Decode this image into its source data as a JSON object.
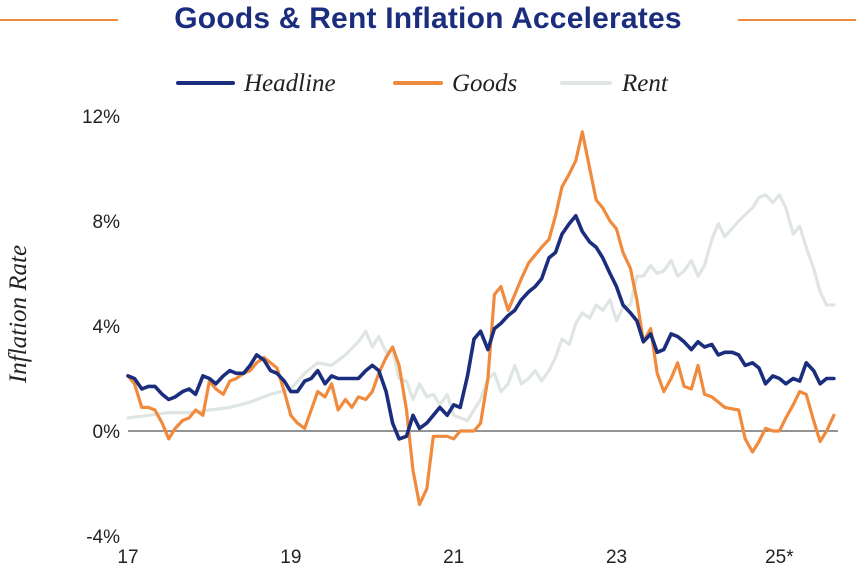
{
  "colors": {
    "title": "#1b2e7e",
    "accent_rule": "#f08a3c",
    "zero_line": "#555555"
  },
  "chart_data": {
    "type": "line",
    "title": "Goods & Rent Inflation Accelerates",
    "ylabel": "Inflation Rate",
    "xlabel": "",
    "ylim": [
      -4,
      12
    ],
    "y_ticks": [
      {
        "value": 12,
        "label": "12%"
      },
      {
        "value": 8,
        "label": "8%"
      },
      {
        "value": 4,
        "label": "4%"
      },
      {
        "value": 0,
        "label": "0%"
      },
      {
        "value": -4,
        "label": "-4%"
      }
    ],
    "x_ticks": [
      {
        "value": 2017.0,
        "label": "17"
      },
      {
        "value": 2019.0,
        "label": "19"
      },
      {
        "value": 2021.0,
        "label": "21"
      },
      {
        "value": 2023.0,
        "label": "23"
      },
      {
        "value": 2025.0,
        "label": "25*"
      }
    ],
    "xlim": [
      2017.0,
      2025.72
    ],
    "legend": "top-center",
    "series": [
      {
        "name": "Rent",
        "color": "#dfe6e2",
        "points": [
          [
            2017.0,
            0.5
          ],
          [
            2017.25,
            0.6
          ],
          [
            2017.5,
            0.7
          ],
          [
            2017.75,
            0.7
          ],
          [
            2018.0,
            0.8
          ],
          [
            2018.25,
            0.9
          ],
          [
            2018.5,
            1.1
          ],
          [
            2018.75,
            1.4
          ],
          [
            2019.0,
            1.6
          ],
          [
            2019.17,
            2.2
          ],
          [
            2019.33,
            2.6
          ],
          [
            2019.5,
            2.5
          ],
          [
            2019.67,
            2.9
          ],
          [
            2019.83,
            3.4
          ],
          [
            2019.92,
            3.8
          ],
          [
            2020.0,
            3.2
          ],
          [
            2020.08,
            3.6
          ],
          [
            2020.17,
            3.0
          ],
          [
            2020.25,
            3.1
          ],
          [
            2020.33,
            2.0
          ],
          [
            2020.42,
            1.9
          ],
          [
            2020.5,
            1.2
          ],
          [
            2020.58,
            1.8
          ],
          [
            2020.67,
            1.3
          ],
          [
            2020.75,
            1.4
          ],
          [
            2020.83,
            1.0
          ],
          [
            2020.92,
            1.4
          ],
          [
            2021.0,
            0.6
          ],
          [
            2021.08,
            0.5
          ],
          [
            2021.17,
            0.4
          ],
          [
            2021.25,
            0.8
          ],
          [
            2021.33,
            1.2
          ],
          [
            2021.42,
            2.0
          ],
          [
            2021.5,
            2.2
          ],
          [
            2021.58,
            1.5
          ],
          [
            2021.67,
            1.8
          ],
          [
            2021.75,
            2.5
          ],
          [
            2021.83,
            1.8
          ],
          [
            2021.92,
            2.0
          ],
          [
            2022.0,
            2.3
          ],
          [
            2022.08,
            1.9
          ],
          [
            2022.17,
            2.3
          ],
          [
            2022.25,
            2.8
          ],
          [
            2022.33,
            3.5
          ],
          [
            2022.42,
            3.3
          ],
          [
            2022.5,
            4.1
          ],
          [
            2022.58,
            4.5
          ],
          [
            2022.67,
            4.3
          ],
          [
            2022.75,
            4.8
          ],
          [
            2022.83,
            4.6
          ],
          [
            2022.92,
            5.0
          ],
          [
            2023.0,
            4.2
          ],
          [
            2023.08,
            4.7
          ],
          [
            2023.17,
            4.8
          ],
          [
            2023.25,
            5.9
          ],
          [
            2023.33,
            5.9
          ],
          [
            2023.42,
            6.3
          ],
          [
            2023.5,
            6.0
          ],
          [
            2023.58,
            6.1
          ],
          [
            2023.67,
            6.5
          ],
          [
            2023.75,
            5.9
          ],
          [
            2023.83,
            6.1
          ],
          [
            2023.92,
            6.5
          ],
          [
            2024.0,
            5.9
          ],
          [
            2024.08,
            6.3
          ],
          [
            2024.17,
            7.3
          ],
          [
            2024.25,
            7.9
          ],
          [
            2024.33,
            7.4
          ],
          [
            2024.5,
            8.0
          ],
          [
            2024.67,
            8.5
          ],
          [
            2024.75,
            8.9
          ],
          [
            2024.83,
            9.0
          ],
          [
            2024.92,
            8.7
          ],
          [
            2025.0,
            9.0
          ],
          [
            2025.08,
            8.5
          ],
          [
            2025.17,
            7.5
          ],
          [
            2025.25,
            7.8
          ],
          [
            2025.33,
            7.0
          ],
          [
            2025.42,
            6.2
          ],
          [
            2025.5,
            5.3
          ],
          [
            2025.58,
            4.8
          ],
          [
            2025.67,
            4.8
          ]
        ]
      },
      {
        "name": "Goods",
        "color": "#f08a3c",
        "points": [
          [
            2017.0,
            2.1
          ],
          [
            2017.08,
            1.8
          ],
          [
            2017.17,
            0.9
          ],
          [
            2017.25,
            0.9
          ],
          [
            2017.33,
            0.8
          ],
          [
            2017.42,
            0.3
          ],
          [
            2017.5,
            -0.3
          ],
          [
            2017.58,
            0.1
          ],
          [
            2017.67,
            0.4
          ],
          [
            2017.75,
            0.5
          ],
          [
            2017.83,
            0.8
          ],
          [
            2017.92,
            0.6
          ],
          [
            2018.0,
            1.9
          ],
          [
            2018.08,
            1.6
          ],
          [
            2018.17,
            1.4
          ],
          [
            2018.25,
            1.9
          ],
          [
            2018.33,
            2.0
          ],
          [
            2018.42,
            2.2
          ],
          [
            2018.5,
            2.3
          ],
          [
            2018.58,
            2.6
          ],
          [
            2018.67,
            2.8
          ],
          [
            2018.75,
            2.6
          ],
          [
            2018.83,
            2.4
          ],
          [
            2018.92,
            1.5
          ],
          [
            2019.0,
            0.6
          ],
          [
            2019.08,
            0.3
          ],
          [
            2019.17,
            0.1
          ],
          [
            2019.25,
            0.8
          ],
          [
            2019.33,
            1.5
          ],
          [
            2019.42,
            1.3
          ],
          [
            2019.5,
            1.8
          ],
          [
            2019.58,
            0.8
          ],
          [
            2019.67,
            1.2
          ],
          [
            2019.75,
            0.9
          ],
          [
            2019.83,
            1.3
          ],
          [
            2019.92,
            1.2
          ],
          [
            2020.0,
            1.5
          ],
          [
            2020.08,
            2.2
          ],
          [
            2020.17,
            2.8
          ],
          [
            2020.25,
            3.2
          ],
          [
            2020.33,
            2.5
          ],
          [
            2020.42,
            0.8
          ],
          [
            2020.5,
            -1.5
          ],
          [
            2020.58,
            -2.8
          ],
          [
            2020.67,
            -2.2
          ],
          [
            2020.75,
            -0.2
          ],
          [
            2020.83,
            -0.2
          ],
          [
            2020.92,
            -0.2
          ],
          [
            2021.0,
            -0.3
          ],
          [
            2021.08,
            0.0
          ],
          [
            2021.17,
            0.0
          ],
          [
            2021.25,
            0.0
          ],
          [
            2021.33,
            0.3
          ],
          [
            2021.42,
            2.0
          ],
          [
            2021.5,
            5.2
          ],
          [
            2021.58,
            5.5
          ],
          [
            2021.67,
            4.6
          ],
          [
            2021.75,
            5.2
          ],
          [
            2021.83,
            5.8
          ],
          [
            2021.92,
            6.4
          ],
          [
            2022.0,
            6.7
          ],
          [
            2022.08,
            7.0
          ],
          [
            2022.17,
            7.3
          ],
          [
            2022.25,
            8.2
          ],
          [
            2022.33,
            9.3
          ],
          [
            2022.42,
            9.8
          ],
          [
            2022.5,
            10.3
          ],
          [
            2022.58,
            11.4
          ],
          [
            2022.67,
            10.0
          ],
          [
            2022.75,
            8.8
          ],
          [
            2022.83,
            8.5
          ],
          [
            2022.92,
            8.0
          ],
          [
            2023.0,
            7.7
          ],
          [
            2023.08,
            6.8
          ],
          [
            2023.17,
            6.2
          ],
          [
            2023.25,
            5.0
          ],
          [
            2023.33,
            3.4
          ],
          [
            2023.42,
            3.9
          ],
          [
            2023.5,
            2.2
          ],
          [
            2023.58,
            1.5
          ],
          [
            2023.67,
            2.0
          ],
          [
            2023.75,
            2.6
          ],
          [
            2023.83,
            1.7
          ],
          [
            2023.92,
            1.6
          ],
          [
            2024.0,
            2.5
          ],
          [
            2024.08,
            1.4
          ],
          [
            2024.17,
            1.3
          ],
          [
            2024.25,
            1.1
          ],
          [
            2024.33,
            0.9
          ],
          [
            2024.5,
            0.8
          ],
          [
            2024.58,
            -0.3
          ],
          [
            2024.67,
            -0.8
          ],
          [
            2024.75,
            -0.4
          ],
          [
            2024.83,
            0.1
          ],
          [
            2024.92,
            0.0
          ],
          [
            2025.0,
            0.0
          ],
          [
            2025.08,
            0.5
          ],
          [
            2025.17,
            1.0
          ],
          [
            2025.25,
            1.5
          ],
          [
            2025.33,
            1.4
          ],
          [
            2025.42,
            0.4
          ],
          [
            2025.5,
            -0.4
          ],
          [
            2025.58,
            0.0
          ],
          [
            2025.67,
            0.6
          ]
        ]
      },
      {
        "name": "Headline",
        "color": "#1b2e7e",
        "points": [
          [
            2017.0,
            2.1
          ],
          [
            2017.08,
            2.0
          ],
          [
            2017.17,
            1.6
          ],
          [
            2017.25,
            1.7
          ],
          [
            2017.33,
            1.7
          ],
          [
            2017.42,
            1.4
          ],
          [
            2017.5,
            1.2
          ],
          [
            2017.58,
            1.3
          ],
          [
            2017.67,
            1.5
          ],
          [
            2017.75,
            1.6
          ],
          [
            2017.83,
            1.4
          ],
          [
            2017.92,
            2.1
          ],
          [
            2018.0,
            2.0
          ],
          [
            2018.08,
            1.8
          ],
          [
            2018.17,
            2.1
          ],
          [
            2018.25,
            2.3
          ],
          [
            2018.33,
            2.2
          ],
          [
            2018.42,
            2.2
          ],
          [
            2018.5,
            2.5
          ],
          [
            2018.58,
            2.9
          ],
          [
            2018.67,
            2.7
          ],
          [
            2018.75,
            2.3
          ],
          [
            2018.83,
            2.2
          ],
          [
            2018.92,
            1.9
          ],
          [
            2019.0,
            1.5
          ],
          [
            2019.08,
            1.5
          ],
          [
            2019.17,
            1.9
          ],
          [
            2019.25,
            2.0
          ],
          [
            2019.33,
            2.3
          ],
          [
            2019.42,
            1.8
          ],
          [
            2019.5,
            2.1
          ],
          [
            2019.58,
            2.0
          ],
          [
            2019.67,
            2.0
          ],
          [
            2019.75,
            2.0
          ],
          [
            2019.83,
            2.0
          ],
          [
            2019.92,
            2.3
          ],
          [
            2020.0,
            2.5
          ],
          [
            2020.08,
            2.3
          ],
          [
            2020.17,
            1.5
          ],
          [
            2020.25,
            0.3
          ],
          [
            2020.33,
            -0.3
          ],
          [
            2020.42,
            -0.2
          ],
          [
            2020.5,
            0.6
          ],
          [
            2020.58,
            0.1
          ],
          [
            2020.67,
            0.3
          ],
          [
            2020.75,
            0.6
          ],
          [
            2020.83,
            0.9
          ],
          [
            2020.92,
            0.6
          ],
          [
            2021.0,
            1.0
          ],
          [
            2021.08,
            0.9
          ],
          [
            2021.17,
            2.1
          ],
          [
            2021.25,
            3.5
          ],
          [
            2021.33,
            3.8
          ],
          [
            2021.42,
            3.1
          ],
          [
            2021.5,
            3.9
          ],
          [
            2021.58,
            4.1
          ],
          [
            2021.67,
            4.4
          ],
          [
            2021.75,
            4.6
          ],
          [
            2021.83,
            5.0
          ],
          [
            2021.92,
            5.3
          ],
          [
            2022.0,
            5.5
          ],
          [
            2022.08,
            5.8
          ],
          [
            2022.17,
            6.6
          ],
          [
            2022.25,
            6.8
          ],
          [
            2022.33,
            7.5
          ],
          [
            2022.42,
            7.9
          ],
          [
            2022.5,
            8.2
          ],
          [
            2022.58,
            7.6
          ],
          [
            2022.67,
            7.2
          ],
          [
            2022.75,
            7.0
          ],
          [
            2022.83,
            6.6
          ],
          [
            2022.92,
            6.0
          ],
          [
            2023.0,
            5.5
          ],
          [
            2023.08,
            4.8
          ],
          [
            2023.17,
            4.5
          ],
          [
            2023.25,
            4.2
          ],
          [
            2023.33,
            3.4
          ],
          [
            2023.42,
            3.7
          ],
          [
            2023.5,
            3.0
          ],
          [
            2023.58,
            3.1
          ],
          [
            2023.67,
            3.7
          ],
          [
            2023.75,
            3.6
          ],
          [
            2023.83,
            3.4
          ],
          [
            2023.92,
            3.1
          ],
          [
            2024.0,
            3.4
          ],
          [
            2024.08,
            3.2
          ],
          [
            2024.17,
            3.3
          ],
          [
            2024.25,
            2.9
          ],
          [
            2024.33,
            3.0
          ],
          [
            2024.42,
            3.0
          ],
          [
            2024.5,
            2.9
          ],
          [
            2024.58,
            2.5
          ],
          [
            2024.67,
            2.6
          ],
          [
            2024.75,
            2.4
          ],
          [
            2024.83,
            1.8
          ],
          [
            2024.92,
            2.1
          ],
          [
            2025.0,
            2.0
          ],
          [
            2025.08,
            1.8
          ],
          [
            2025.17,
            2.0
          ],
          [
            2025.25,
            1.9
          ],
          [
            2025.33,
            2.6
          ],
          [
            2025.42,
            2.3
          ],
          [
            2025.5,
            1.8
          ],
          [
            2025.58,
            2.0
          ],
          [
            2025.67,
            2.0
          ]
        ]
      }
    ]
  }
}
